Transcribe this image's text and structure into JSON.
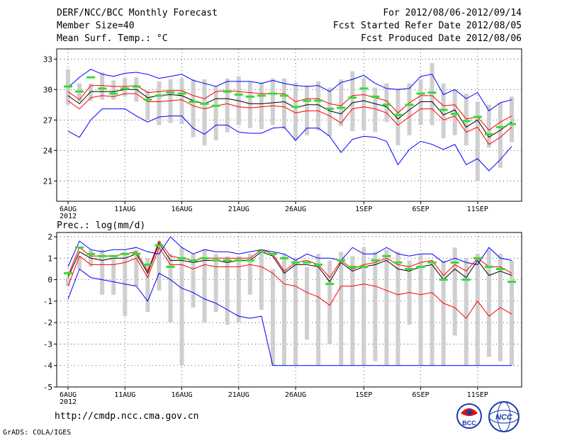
{
  "header": {
    "title": "DERF/NCC/BCC Monthly Forecast",
    "member_size": "Member Size=40",
    "variable": "Mean Surf. Temp.: °C",
    "period": "For 2012/08/06-2012/09/14",
    "started": "Fcst Started Refer Date 2012/08/05",
    "produced": "Fcst Produced Date 2012/08/06"
  },
  "footer": {
    "url": "http://cmdp.ncc.cma.gov.cn",
    "grads": "GrADS: COLA/IGES",
    "logo_bcc": "BCC",
    "logo_ncc": "NCC"
  },
  "x_year_label": "2012",
  "chart_data": [
    {
      "type": "line",
      "name": "temperature",
      "title": "Mean Surf. Temp.: °C",
      "x_days": 40,
      "ylim": [
        19,
        34
      ],
      "yticks": [
        21,
        24,
        27,
        30,
        33
      ],
      "xticks": [
        {
          "label": "6AUG",
          "day": 0
        },
        {
          "label": "11AUG",
          "day": 5
        },
        {
          "label": "16AUG",
          "day": 10
        },
        {
          "label": "21AUG",
          "day": 15
        },
        {
          "label": "26AUG",
          "day": 20
        },
        {
          "label": "1SEP",
          "day": 26
        },
        {
          "label": "6SEP",
          "day": 31
        },
        {
          "label": "11SEP",
          "day": 36
        }
      ],
      "series": [
        {
          "name": "max",
          "color": "#0000ff",
          "values": [
            30.2,
            31.2,
            32,
            31.5,
            31.3,
            31.6,
            31.7,
            31.5,
            31.1,
            31.3,
            31.5,
            30.9,
            30.6,
            30.3,
            30.8,
            30.8,
            30.8,
            30.6,
            30.9,
            30.6,
            30.4,
            30.3,
            30.4,
            29.8,
            30.7,
            31,
            31.4,
            30.6,
            30.1,
            30.0,
            30.1,
            31.3,
            31.5,
            29.5,
            30,
            29.1,
            29.7,
            27.9,
            28.7,
            29
          ]
        },
        {
          "name": "upper",
          "color": "#ff0000",
          "values": [
            29.8,
            29,
            30.4,
            30.4,
            30.3,
            30.3,
            30.4,
            29.7,
            29.8,
            29.9,
            29.9,
            29.4,
            29.1,
            29.8,
            29.9,
            29.8,
            29.7,
            29.6,
            29.6,
            29.6,
            28.8,
            29.1,
            29.1,
            28.6,
            28.4,
            29.4,
            29.5,
            29.2,
            28.9,
            27.7,
            28.7,
            29.4,
            29.4,
            28.4,
            28.5,
            27.1,
            27.3,
            26,
            26.8,
            27.4
          ]
        },
        {
          "name": "mean",
          "color": "#000000",
          "values": [
            29.4,
            28.6,
            29.8,
            29.8,
            29.8,
            30,
            30,
            29.2,
            29.4,
            29.5,
            29.4,
            28.9,
            28.6,
            29.1,
            29.1,
            28.9,
            28.6,
            28.6,
            28.7,
            28.8,
            28.2,
            28.5,
            28.5,
            27.9,
            27.6,
            28.7,
            28.9,
            28.6,
            28.3,
            27.1,
            28,
            28.8,
            28.8,
            27.5,
            28,
            26.3,
            27,
            25.3,
            26,
            26.8
          ]
        },
        {
          "name": "lower",
          "color": "#ff0000",
          "values": [
            28.9,
            28.1,
            29.2,
            29.4,
            29.3,
            29.6,
            29.6,
            28.8,
            28.8,
            28.9,
            29.0,
            28.4,
            28.1,
            28.4,
            28.6,
            28.3,
            28.2,
            28.3,
            28.4,
            28.3,
            27.7,
            27.9,
            27.9,
            27.4,
            26.7,
            28.1,
            28.3,
            28.1,
            27.7,
            26.5,
            27.3,
            28.1,
            28.1,
            27.0,
            27.4,
            25.8,
            26.3,
            24.6,
            25.3,
            26.3
          ]
        },
        {
          "name": "min",
          "color": "#0000ff",
          "values": [
            25.9,
            25.3,
            27,
            28.1,
            28.1,
            28.1,
            27.4,
            26.8,
            27.3,
            27.4,
            27.4,
            26.2,
            25.6,
            26.5,
            26.5,
            25.8,
            25.7,
            25.7,
            26.2,
            26.3,
            25,
            26.2,
            26.2,
            25.4,
            23.8,
            25.1,
            25.4,
            25.3,
            24.9,
            22.6,
            24.1,
            24.9,
            24.6,
            24.1,
            24.6,
            22.6,
            23.2,
            22,
            23.1,
            24.4
          ]
        }
      ],
      "box_low": [
        28.5,
        28.8,
        28.9,
        29,
        29,
        29.3,
        28.8,
        27,
        26.5,
        26.7,
        26.6,
        25.3,
        24.5,
        25.0,
        25.8,
        26.5,
        26.2,
        26.1,
        26.5,
        26.1,
        25.0,
        25.5,
        26.0,
        25.4,
        26.4,
        25.9,
        26.0,
        25.8,
        26.8,
        24.5,
        25.5,
        26.5,
        26.5,
        25.2,
        25.5,
        24.5,
        21,
        24.3,
        22.3,
        24.8
      ],
      "box_high": [
        32,
        30.6,
        30.6,
        31.7,
        30.9,
        31.1,
        31.2,
        29.9,
        30.8,
        31.0,
        31.1,
        31.0,
        31.0,
        30.3,
        31.1,
        31.3,
        30.8,
        30.7,
        31.1,
        31.1,
        30.7,
        30.4,
        30.8,
        30.2,
        31.0,
        31.8,
        31.1,
        30.2,
        30.6,
        30.1,
        30.6,
        31.0,
        32.6,
        30.6,
        30.0,
        29.6,
        28.8,
        28.5,
        28.7,
        29.3
      ],
      "bar_values": [
        30.3,
        29.8,
        31.2,
        30.1,
        29.6,
        30.1,
        30.3,
        29.0,
        29.4,
        29.7,
        29.6,
        28.8,
        28.6,
        28.4,
        29.8,
        29.5,
        29.3,
        29.4,
        29.6,
        29.4,
        28.3,
        28.9,
        28.9,
        28.1,
        28.2,
        29.2,
        30.1,
        29.3,
        28.5,
        27.5,
        28.5,
        29.6,
        29.7,
        28.0,
        27.6,
        26.9,
        27.3,
        25.6,
        26.3,
        26.6
      ]
    },
    {
      "type": "line",
      "name": "precipitation",
      "title": "Prec.: log(mm/d)",
      "x_days": 40,
      "ylim": [
        -5,
        2.2
      ],
      "yticks": [
        -5,
        -4,
        -3,
        -2,
        -1,
        0,
        1,
        2
      ],
      "xticks": [
        {
          "label": "6AUG",
          "day": 0
        },
        {
          "label": "11AUG",
          "day": 5
        },
        {
          "label": "16AUG",
          "day": 10
        },
        {
          "label": "21AUG",
          "day": 15
        },
        {
          "label": "26AUG",
          "day": 20
        },
        {
          "label": "1SEP",
          "day": 26
        },
        {
          "label": "6SEP",
          "day": 31
        },
        {
          "label": "11SEP",
          "day": 36
        }
      ],
      "series": [
        {
          "name": "max",
          "color": "#0000ff",
          "values": [
            0.6,
            1.8,
            1.4,
            1.3,
            1.4,
            1.4,
            1.5,
            1.3,
            1.2,
            2.0,
            1.5,
            1.2,
            1.4,
            1.3,
            1.3,
            1.2,
            1.3,
            1.4,
            1.3,
            1.2,
            0.9,
            1.2,
            1.0,
            1.0,
            0.9,
            1.5,
            1.2,
            1.2,
            1.5,
            1.2,
            1.1,
            1.2,
            1.2,
            0.8,
            1.0,
            0.8,
            0.7,
            1.5,
            1.0,
            0.9
          ]
        },
        {
          "name": "upper",
          "color": "#ff0000",
          "values": [
            0.2,
            1.5,
            1.1,
            1.1,
            1.1,
            1.2,
            1.3,
            0.4,
            1.8,
            1.1,
            1.0,
            0.9,
            1.0,
            1.0,
            1.0,
            1.0,
            1.0,
            1.4,
            1.2,
            0.4,
            0.8,
            0.9,
            0.7,
            0.1,
            0.9,
            0.5,
            0.7,
            0.8,
            1.0,
            0.7,
            0.6,
            0.8,
            0.9,
            0.2,
            0.7,
            0.4,
            1.0,
            0.6,
            0.6,
            0.3
          ]
        },
        {
          "name": "mean",
          "color": "#000000",
          "values": [
            0.1,
            1.3,
            1.0,
            0.9,
            1.0,
            1.0,
            1.2,
            0.3,
            1.7,
            0.9,
            0.9,
            0.8,
            0.9,
            0.9,
            0.8,
            0.9,
            0.9,
            1.3,
            1.1,
            0.3,
            0.7,
            0.7,
            0.6,
            -0.1,
            0.8,
            0.4,
            0.6,
            0.7,
            0.9,
            0.5,
            0.4,
            0.6,
            0.7,
            0.0,
            0.5,
            0.1,
            0.9,
            0.2,
            0.4,
            0.2
          ]
        },
        {
          "name": "lower",
          "color": "#ff0000",
          "values": [
            -0.3,
            1.1,
            0.7,
            0.7,
            0.7,
            0.8,
            1.0,
            0.1,
            1.5,
            0.7,
            0.7,
            0.5,
            0.7,
            0.6,
            0.6,
            0.6,
            0.7,
            0.6,
            0.3,
            -0.2,
            -0.3,
            -0.6,
            -0.8,
            -1.2,
            -0.3,
            -0.3,
            -0.2,
            -0.3,
            -0.5,
            -0.7,
            -0.6,
            -0.7,
            -0.6,
            -1.1,
            -1.3,
            -1.8,
            -1.0,
            -1.7,
            -1.3,
            -1.6
          ]
        },
        {
          "name": "min",
          "color": "#0000ff",
          "values": [
            -0.9,
            0.5,
            0.1,
            0.0,
            -0.1,
            -0.2,
            -0.3,
            -1.0,
            0.3,
            0.0,
            -0.4,
            -0.6,
            -0.9,
            -1.1,
            -1.4,
            -1.7,
            -1.8,
            -1.7,
            -4.0,
            -4.0,
            -4.0,
            -4.0,
            -4.0,
            -4.0,
            -4.0,
            -4.0,
            -4.0,
            -4.0,
            -4.0,
            -4.0,
            -4.0,
            -4.0,
            -4.0,
            -4.0,
            -4.0,
            -4.0,
            -4.0,
            -4.0,
            -4.0,
            -4.0
          ]
        }
      ],
      "box_low": [
        -0.3,
        0.5,
        0.6,
        -0.7,
        -0.7,
        -1.7,
        -0.3,
        -1.5,
        -0.5,
        -2.0,
        -4.0,
        -1.3,
        -2.0,
        -1.5,
        -2.1,
        -2.0,
        -0.7,
        -1.4,
        -4.0,
        -4.0,
        -4.0,
        -2.8,
        -4.0,
        -3.0,
        -4.0,
        -4.0,
        -4.0,
        -3.8,
        -4.0,
        -4.0,
        -2.1,
        -4.0,
        -4.0,
        -4.0,
        -2.6,
        -4.0,
        -4.0,
        -3.6,
        -3.8,
        -4.0
      ],
      "box_high": [
        0.1,
        1.1,
        1.4,
        1.4,
        1.0,
        1.3,
        1.4,
        1.0,
        1.8,
        1.2,
        1.5,
        1.2,
        1.4,
        1.2,
        1.1,
        1.1,
        1.2,
        1.4,
        0.5,
        1.2,
        1.0,
        0.6,
        1.2,
        0.9,
        1.3,
        1.1,
        1.5,
        1.3,
        1.4,
        1.3,
        0.9,
        1.2,
        0.9,
        0.9,
        1.5,
        1.0,
        1.2,
        1.4,
        1.2,
        0.9
      ],
      "bar_values": [
        0.3,
        1.5,
        1.2,
        1.1,
        1.1,
        1.2,
        1.2,
        0.7,
        1.6,
        0.6,
        1.0,
        0.9,
        1.0,
        0.9,
        0.9,
        0.9,
        0.9,
        1.3,
        1.2,
        1.0,
        0.8,
        0.8,
        0.7,
        -0.2,
        0.9,
        0.6,
        0.6,
        0.9,
        1.1,
        0.8,
        0.5,
        0.6,
        0.8,
        0.0,
        0.8,
        0.0,
        1.0,
        0.6,
        0.5,
        -0.1
      ]
    }
  ]
}
